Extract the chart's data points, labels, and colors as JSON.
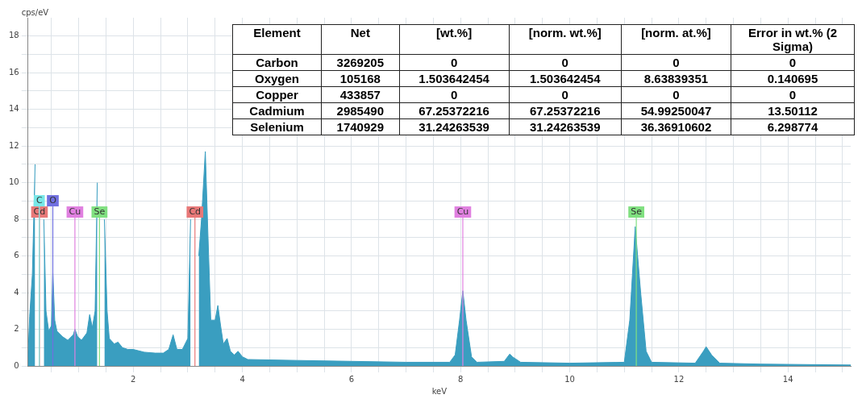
{
  "chart_data": [
    {
      "type": "area",
      "xlabel": "keV",
      "ylabel": "cps/eV",
      "color": "#3a9ec0",
      "x": [
        0.07,
        0.1,
        0.15,
        0.2,
        0.25,
        0.32,
        0.36,
        0.4,
        0.45,
        0.5,
        0.525,
        0.56,
        0.6,
        0.7,
        0.8,
        0.9,
        0.93,
        0.98,
        1.05,
        1.15,
        1.2,
        1.25,
        1.3,
        1.34,
        1.37,
        1.43,
        1.47,
        1.52,
        1.56,
        1.65,
        1.72,
        1.8,
        1.9,
        2.0,
        2.2,
        2.4,
        2.55,
        2.65,
        2.73,
        2.8,
        2.9,
        3.0,
        3.05,
        3.09,
        3.17,
        3.2,
        3.25,
        3.32,
        3.37,
        3.42,
        3.5,
        3.55,
        3.6,
        3.65,
        3.72,
        3.78,
        3.85,
        3.92,
        4.0,
        4.1,
        5.0,
        6.0,
        7.0,
        7.8,
        7.9,
        7.98,
        8.04,
        8.1,
        8.2,
        8.3,
        8.8,
        8.9,
        8.95,
        9.1,
        10.0,
        11.0,
        11.1,
        11.2,
        11.3,
        11.4,
        11.5,
        12.3,
        12.45,
        12.5,
        12.6,
        12.75,
        13.5,
        15.15
      ],
      "values": [
        0.5,
        2.7,
        5,
        11,
        null,
        null,
        8,
        3,
        1.9,
        2.2,
        5.1,
        2.5,
        1.9,
        1.6,
        1.4,
        1.7,
        2.0,
        1.6,
        1.4,
        1.8,
        2.8,
        2.1,
        3,
        10,
        null,
        null,
        8,
        3,
        1.5,
        1.2,
        1.3,
        1.0,
        0.9,
        0.9,
        0.75,
        0.7,
        0.7,
        0.9,
        1.7,
        0.9,
        0.9,
        1.5,
        8,
        null,
        null,
        6,
        8,
        11.7,
        7,
        2.5,
        2.5,
        3.3,
        2.2,
        1.2,
        1.5,
        0.8,
        0.6,
        0.8,
        0.5,
        0.35,
        0.3,
        0.25,
        0.2,
        0.2,
        0.6,
        2.5,
        4.1,
        2.5,
        0.5,
        0.2,
        0.25,
        0.65,
        0.5,
        0.2,
        0.15,
        0.2,
        2.5,
        7.6,
        4,
        0.8,
        0.2,
        0.15,
        0.8,
        1.05,
        0.6,
        0.15,
        0.1,
        0.05
      ],
      "xlim": [
        0.07,
        15.15
      ],
      "ylim": [
        0,
        19
      ],
      "xticks": [
        {
          "value": 0.5,
          "label": null
        },
        {
          "value": 1,
          "label": null
        },
        {
          "value": 1.5,
          "label": null
        },
        2,
        {
          "value": 2.5,
          "label": null
        },
        {
          "value": 3,
          "label": null
        },
        {
          "value": 3.5,
          "label": null
        },
        4,
        {
          "value": 4.5,
          "label": null
        },
        {
          "value": 5,
          "label": null
        },
        {
          "value": 5.5,
          "label": null
        },
        6,
        {
          "value": 6.5,
          "label": null
        },
        {
          "value": 7,
          "label": null
        },
        {
          "value": 7.5,
          "label": null
        },
        8,
        {
          "value": 8.5,
          "label": null
        },
        {
          "value": 9,
          "label": null
        },
        {
          "value": 9.5,
          "label": null
        },
        10,
        {
          "value": 10.5,
          "label": null
        },
        {
          "value": 11,
          "label": null
        },
        {
          "value": 11.5,
          "label": null
        },
        12,
        {
          "value": 12.5,
          "label": null
        },
        {
          "value": 13,
          "label": null
        },
        {
          "value": 13.5,
          "label": null
        },
        14,
        {
          "value": 14.5,
          "label": null
        },
        {
          "value": 15,
          "label": null
        }
      ],
      "yticks": [
        0,
        {
          "value": 1,
          "label": null
        },
        2,
        {
          "value": 3,
          "label": null
        },
        4,
        {
          "value": 5,
          "label": null
        },
        6,
        {
          "value": 7,
          "label": null
        },
        8,
        {
          "value": 9,
          "label": null
        },
        10,
        {
          "value": 11,
          "label": null
        },
        12,
        {
          "value": 13,
          "label": null
        },
        14,
        {
          "value": 15,
          "label": null
        },
        16,
        {
          "value": 17,
          "label": null
        },
        18
      ],
      "grid": true,
      "legend": false,
      "ref_lines": [
        {
          "axis": "x",
          "value": 0.28,
          "label": "Cd",
          "color": "#e87878"
        },
        {
          "axis": "x",
          "value": 0.277,
          "label": "C",
          "color": "#78e8e8"
        },
        {
          "axis": "x",
          "value": 0.525,
          "label": "O",
          "color": "#7070e0"
        },
        {
          "axis": "x",
          "value": 0.93,
          "label": "Cu",
          "color": "#e080e0"
        },
        {
          "axis": "x",
          "value": 1.38,
          "label": "Se",
          "color": "#80e080"
        },
        {
          "axis": "x",
          "value": 3.13,
          "label": "Cd",
          "color": "#e87878"
        },
        {
          "axis": "x",
          "value": 8.04,
          "label": "Cu",
          "color": "#e080e0"
        },
        {
          "axis": "x",
          "value": 11.22,
          "label": "Se",
          "color": "#80e080"
        }
      ]
    },
    {
      "type": "other",
      "categories": [
        "Element",
        "Net",
        "[wt.%]",
        "[norm. wt.%]",
        "[norm. at.%]",
        "Error in wt.% (2 Sigma)"
      ],
      "annotations": [
        "Carbon",
        "3269205",
        "0",
        "0",
        "0",
        "0",
        "Oxygen",
        "105168",
        "1.503642454",
        "1.503642454",
        "8.63839351",
        "0.140695",
        "Copper",
        "433857",
        "0",
        "0",
        "0",
        "0",
        "Cadmium",
        "2985490",
        "67.25372216",
        "67.25372216",
        "54.99250047",
        "13.50112",
        "Selenium",
        "1740929",
        "31.24263539",
        "31.24263539",
        "36.36910602",
        "6.298774"
      ]
    }
  ]
}
